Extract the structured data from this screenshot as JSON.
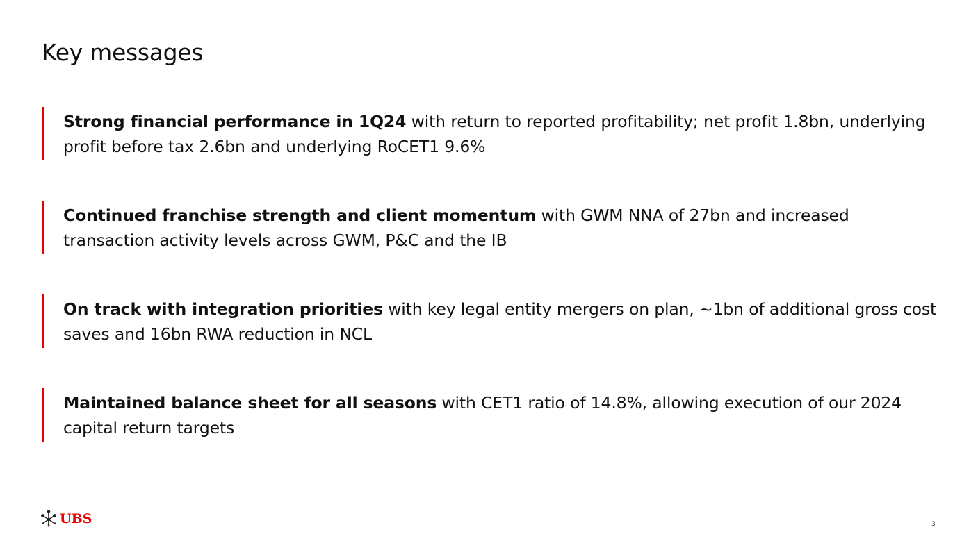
{
  "slide": {
    "title": "Key messages",
    "page_number": "3"
  },
  "messages": [
    {
      "bold": "Strong financial performance in 1Q24",
      "text": " with return to reported profitability; net profit 1.8bn, underlying profit before tax 2.6bn and underlying RoCET1 9.6%"
    },
    {
      "bold": "Continued franchise strength and client momentum",
      "text": " with GWM NNA of 27bn and increased transaction activity levels across GWM, P&C and the IB"
    },
    {
      "bold": "On track with integration priorities",
      "text": " with key legal entity mergers on plan, ~1bn of additional gross cost saves and 16bn RWA reduction in NCL"
    },
    {
      "bold": "Maintained balance sheet for all seasons",
      "text": " with CET1 ratio of 14.8%, allowing execution of our 2024 capital return targets"
    }
  ],
  "logo": {
    "text": "UBS",
    "icon": "ubs-keys-icon"
  },
  "colors": {
    "accent": "#e60000",
    "text": "#111111",
    "background": "#ffffff"
  }
}
